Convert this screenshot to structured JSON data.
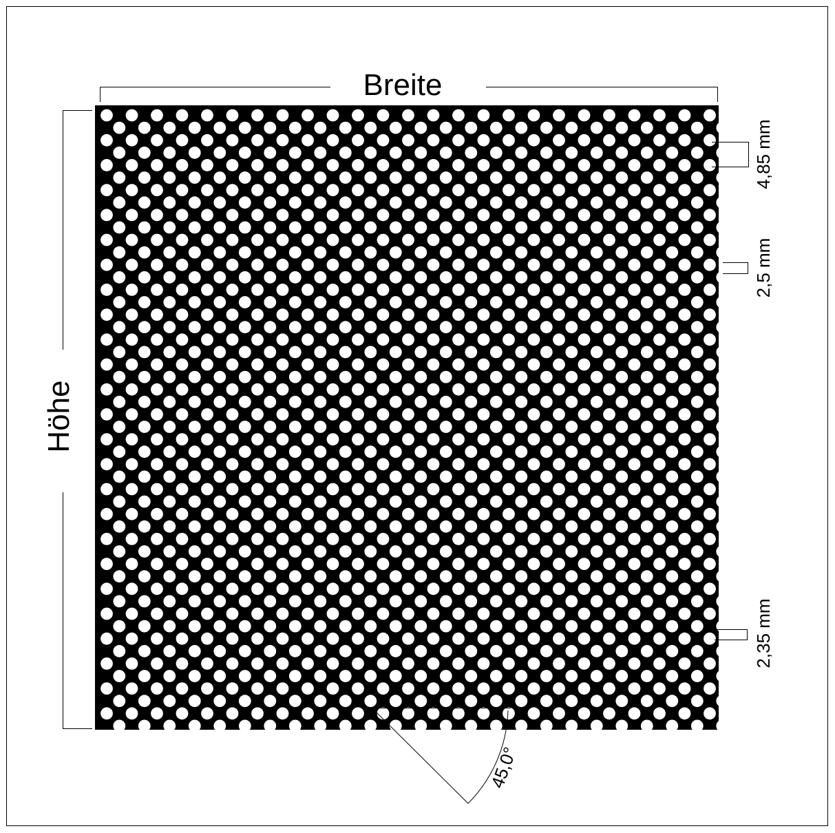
{
  "labels": {
    "width": "Breite",
    "height": "Höhe",
    "pitch": "4,85 mm",
    "hole_diameter": "2,5 mm",
    "web": "2,35 mm",
    "angle": "45,0°"
  },
  "pattern": {
    "layout": "staggered 45°",
    "hole_color": "#ffffff",
    "sheet_color": "#000000"
  }
}
